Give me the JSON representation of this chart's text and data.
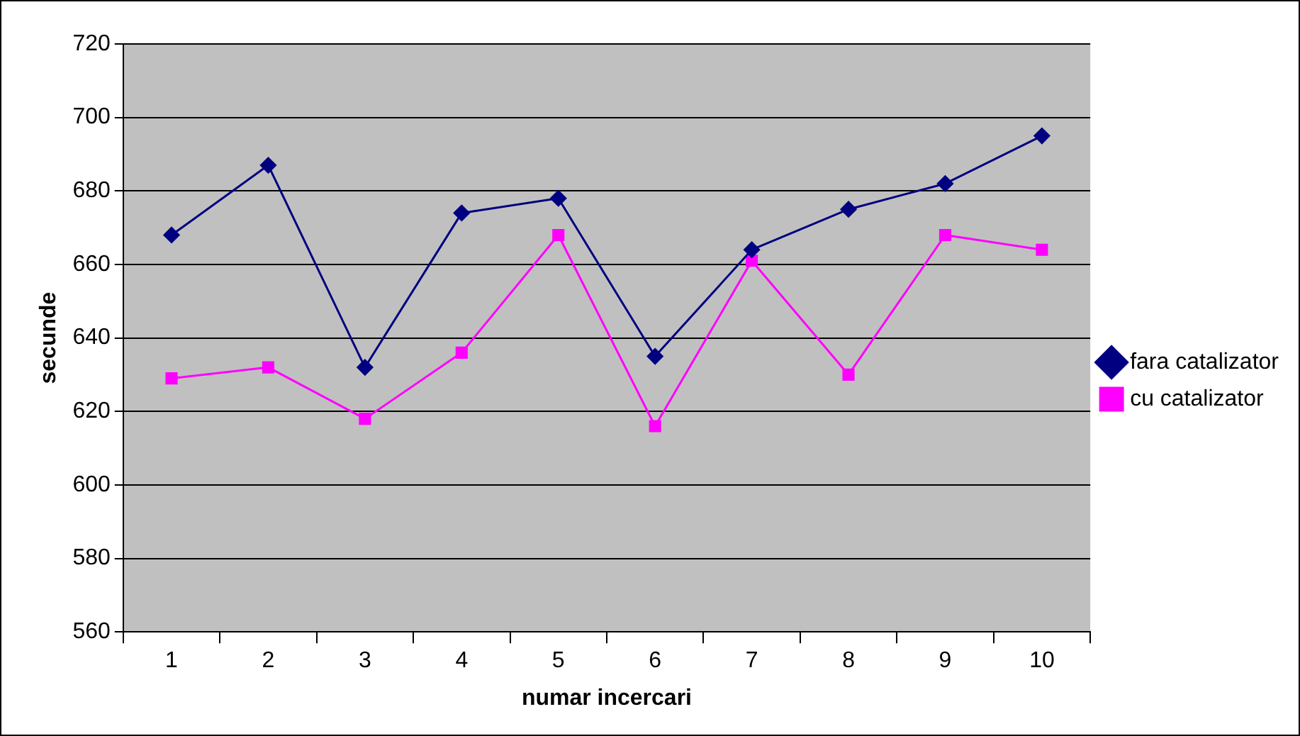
{
  "chart_data": {
    "type": "line",
    "xlabel": "numar incercari",
    "ylabel": "secunde",
    "categories": [
      "1",
      "2",
      "3",
      "4",
      "5",
      "6",
      "7",
      "8",
      "9",
      "10"
    ],
    "series": [
      {
        "name": "fara catalizator",
        "color": "#000080",
        "marker": "diamond",
        "values": [
          668,
          687,
          632,
          674,
          678,
          635,
          664,
          675,
          682,
          695
        ]
      },
      {
        "name": "cu catalizator",
        "color": "#ff00ff",
        "marker": "square",
        "values": [
          629,
          632,
          618,
          636,
          668,
          616,
          661,
          630,
          668,
          664
        ]
      }
    ],
    "ylim": [
      560,
      720
    ],
    "yticks": [
      560,
      580,
      600,
      620,
      640,
      660,
      680,
      700,
      720
    ],
    "grid": "y",
    "legend": "right"
  }
}
